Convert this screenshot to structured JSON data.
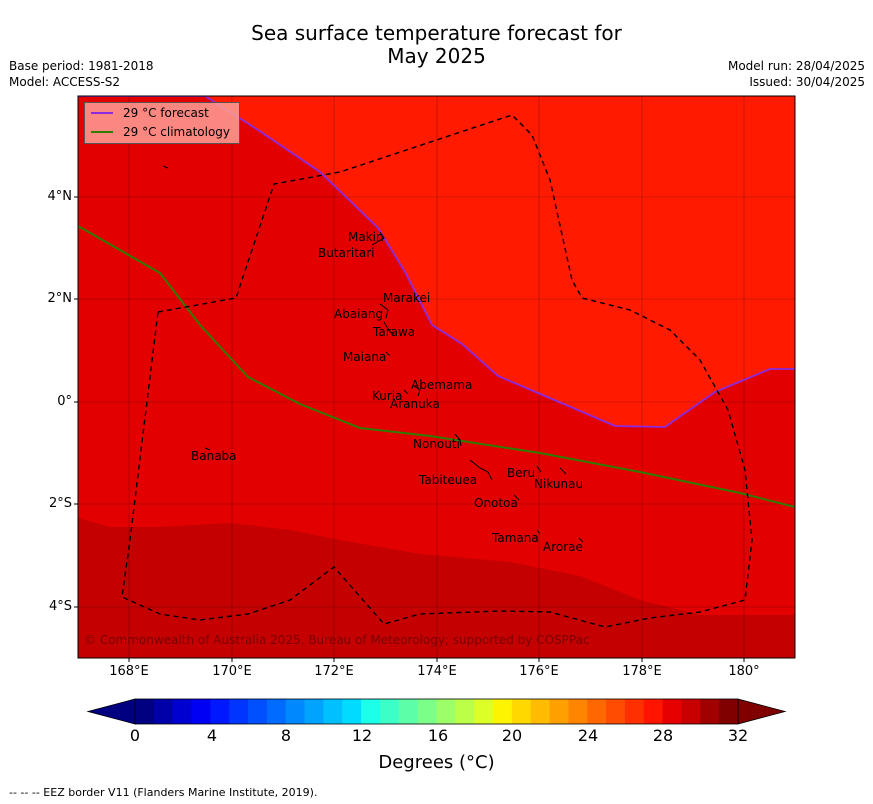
{
  "header": {
    "title_line1": "Sea surface temperature forecast for",
    "title_line2": "May 2025",
    "base_period": "Base period: 1981-2018",
    "model": "Model: ACCESS-S2",
    "model_run": "Model run: 28/04/2025",
    "issued": "Issued: 30/04/2025"
  },
  "map": {
    "lat_labels": [
      "4°N",
      "2°N",
      "0°",
      "2°S",
      "4°S"
    ],
    "lon_labels": [
      "168°E",
      "170°E",
      "172°E",
      "174°E",
      "176°E",
      "178°E",
      "180°"
    ],
    "colors": {
      "warm_29_31": "#ff1a00",
      "band_29": "#e30000",
      "band_31": "#c40000",
      "forecast_line": "#8a2be2",
      "climatology_line": "#2e7d00",
      "eez": "#000000"
    },
    "islands": [
      {
        "name": "Makin"
      },
      {
        "name": "Butaritari"
      },
      {
        "name": "Marakei"
      },
      {
        "name": "Abaiang"
      },
      {
        "name": "Tarawa"
      },
      {
        "name": "Maiana"
      },
      {
        "name": "Abemama"
      },
      {
        "name": "Kuria"
      },
      {
        "name": "Aranuka"
      },
      {
        "name": "Nonouti"
      },
      {
        "name": "Banaba"
      },
      {
        "name": "Beru"
      },
      {
        "name": "Tabiteuea"
      },
      {
        "name": "Nikunau"
      },
      {
        "name": "Onotoa"
      },
      {
        "name": "Tamana"
      },
      {
        "name": "Arorae"
      }
    ],
    "copyright": "© Commonwealth of Australia 2025, Bureau of Meteorology; supported by COSPPac"
  },
  "legend": {
    "forecast_label": "29 °C  forecast",
    "climatology_label": "29 °C  climatology"
  },
  "colorbar": {
    "ticks": [
      "0",
      "4",
      "8",
      "12",
      "16",
      "20",
      "24",
      "28",
      "32"
    ],
    "label": "Degrees (°C)",
    "colors": [
      "#000080",
      "#0000a8",
      "#0000d0",
      "#0000f5",
      "#0018ff",
      "#0034ff",
      "#0050ff",
      "#006cff",
      "#0088ff",
      "#00a4ff",
      "#00c0ff",
      "#00dcff",
      "#1cffe8",
      "#3cffc8",
      "#5cffa8",
      "#7cff88",
      "#9cff68",
      "#bcff48",
      "#dcff28",
      "#fcf400",
      "#ffd800",
      "#ffbc00",
      "#ffa000",
      "#ff8400",
      "#ff6800",
      "#ff4c00",
      "#ff3000",
      "#ff1400",
      "#e60000",
      "#c80000",
      "#a00000",
      "#800000"
    ]
  },
  "footnote": "--  --  -- EEZ border V11 (Flanders Marine Institute, 2019)."
}
